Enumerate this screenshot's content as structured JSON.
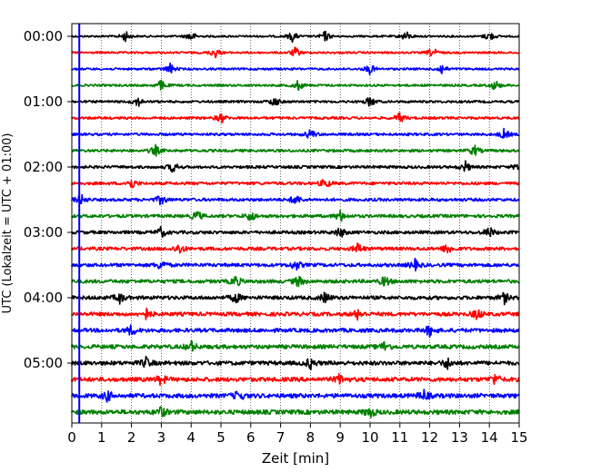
{
  "chart_data": {
    "type": "line",
    "title": "",
    "xlabel": "Zeit  [min]",
    "ylabel": "UTC (Lokalzeit = UTC + 01:00)",
    "xlim": [
      0,
      15
    ],
    "x_ticks": [
      "0",
      "1",
      "2",
      "3",
      "4",
      "5",
      "6",
      "7",
      "8",
      "9",
      "10",
      "11",
      "12",
      "13",
      "14",
      "15"
    ],
    "y_ticks": [
      "00:00",
      "01:00",
      "02:00",
      "03:00",
      "04:00",
      "05:00"
    ],
    "grid": "vertical dotted at each minute",
    "marker_line_x": 0.25,
    "colors": [
      "#000000",
      "#ff0000",
      "#0000ff",
      "#008000"
    ],
    "traces": [
      {
        "start": "00:00",
        "color": "#000000",
        "bursts": [
          1.8,
          4.0,
          7.4,
          8.5,
          11.2,
          14.0
        ]
      },
      {
        "start": "00:15",
        "color": "#ff0000",
        "bursts": [
          4.8,
          7.5,
          12.1
        ]
      },
      {
        "start": "00:30",
        "color": "#0000ff",
        "bursts": [
          3.3,
          10.0,
          12.4
        ]
      },
      {
        "start": "00:45",
        "color": "#008000",
        "bursts": [
          3.0,
          7.6,
          14.2
        ]
      },
      {
        "start": "01:00",
        "color": "#000000",
        "bursts": [
          2.2,
          6.8,
          10.0
        ]
      },
      {
        "start": "01:15",
        "color": "#ff0000",
        "bursts": [
          5.0,
          11.0
        ]
      },
      {
        "start": "01:30",
        "color": "#0000ff",
        "bursts": [
          8.0,
          14.5
        ]
      },
      {
        "start": "01:45",
        "color": "#008000",
        "bursts": [
          2.8,
          13.5
        ]
      },
      {
        "start": "02:00",
        "color": "#000000",
        "bursts": [
          3.4,
          13.2,
          15.0
        ]
      },
      {
        "start": "02:15",
        "color": "#ff0000",
        "bursts": [
          2.0,
          8.5
        ]
      },
      {
        "start": "02:30",
        "color": "#0000ff",
        "bursts": [
          0.3,
          3.0,
          7.5
        ]
      },
      {
        "start": "02:45",
        "color": "#008000",
        "bursts": [
          4.2,
          6.0,
          9.0
        ]
      },
      {
        "start": "03:00",
        "color": "#000000",
        "bursts": [
          3.0,
          9.0,
          14.0
        ]
      },
      {
        "start": "03:15",
        "color": "#ff0000",
        "bursts": [
          3.6,
          9.6,
          12.6
        ]
      },
      {
        "start": "03:30",
        "color": "#0000ff",
        "bursts": [
          3.0,
          7.5,
          11.5
        ]
      },
      {
        "start": "03:45",
        "color": "#008000",
        "bursts": [
          5.5,
          7.6,
          10.5
        ]
      },
      {
        "start": "04:00",
        "color": "#000000",
        "bursts": [
          1.6,
          5.5,
          8.5,
          14.5
        ]
      },
      {
        "start": "04:15",
        "color": "#ff0000",
        "bursts": [
          2.5,
          9.6,
          13.6
        ]
      },
      {
        "start": "04:30",
        "color": "#0000ff",
        "bursts": [
          2.0,
          12.0
        ]
      },
      {
        "start": "04:45",
        "color": "#008000",
        "bursts": [
          4.0,
          10.5
        ]
      },
      {
        "start": "05:00",
        "color": "#000000",
        "bursts": [
          2.5,
          8.0,
          12.6
        ]
      },
      {
        "start": "05:15",
        "color": "#ff0000",
        "bursts": [
          3.0,
          9.0,
          14.2
        ]
      },
      {
        "start": "05:30",
        "color": "#0000ff",
        "bursts": [
          1.2,
          5.6,
          11.8
        ]
      },
      {
        "start": "05:45",
        "color": "#008000",
        "bursts": [
          3.0,
          10.0
        ]
      }
    ]
  }
}
